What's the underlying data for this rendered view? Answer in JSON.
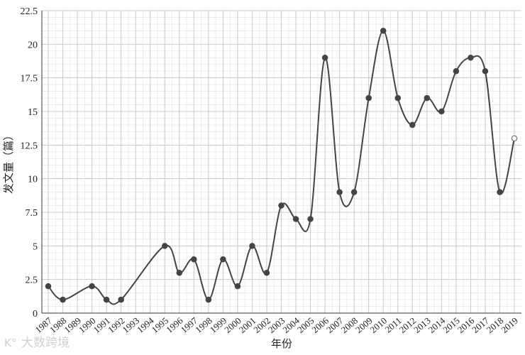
{
  "chart_data": {
    "type": "line",
    "title": "",
    "xlabel": "年份",
    "ylabel": "发文量（篇）",
    "ylim": [
      0,
      22.5
    ],
    "yticks": [
      0,
      2.5,
      5,
      7.5,
      10,
      12.5,
      15,
      17.5,
      20,
      22.5
    ],
    "ytick_labels": [
      "0",
      "2.5",
      "5",
      "7.5",
      "10",
      "12.5",
      "15",
      "17.5",
      "20",
      "22.5"
    ],
    "categories": [
      "1987",
      "1988",
      "1989",
      "1990",
      "1991",
      "1992",
      "1993",
      "1994",
      "1995",
      "1996",
      "1997",
      "1998",
      "1999",
      "2000",
      "2001",
      "2002",
      "2003",
      "2004",
      "2005",
      "2006",
      "2007",
      "2008",
      "2009",
      "2010",
      "2011",
      "2012",
      "2013",
      "2014",
      "2015",
      "2016",
      "2017",
      "2018",
      "2019"
    ],
    "values": [
      2,
      1,
      null,
      2,
      1,
      1,
      null,
      null,
      5,
      3,
      4,
      1,
      4,
      2,
      5,
      3,
      8,
      7,
      7,
      19,
      9,
      9,
      16,
      21,
      16,
      14,
      16,
      15,
      18,
      19,
      18,
      9,
      13
    ],
    "hollow_points": [
      "2019"
    ],
    "smooth": true,
    "grid": true,
    "minor_grid_y": 0.5,
    "colors": {
      "line": "#444444",
      "grid": "#c8c8c8",
      "minor_grid": "#e6e6e6"
    }
  },
  "watermark": "大数跨境"
}
